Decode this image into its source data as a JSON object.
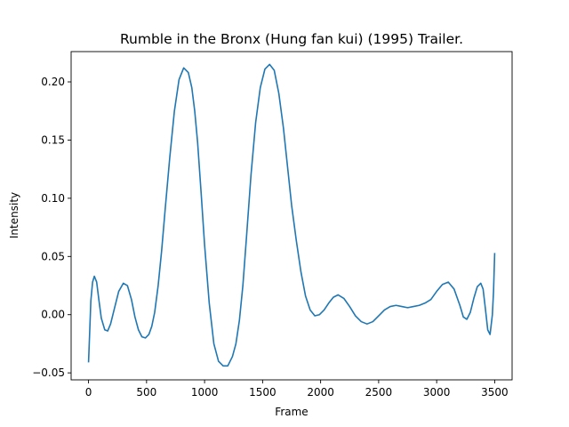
{
  "chart_data": {
    "type": "line",
    "title": "Rumble in the Bronx (Hung fan kui) (1995) Trailer.",
    "xlabel": "Frame",
    "ylabel": "Intensity",
    "xlim": [
      -150,
      3650
    ],
    "ylim": [
      -0.056,
      0.226
    ],
    "xticks": [
      0,
      500,
      1000,
      1500,
      2000,
      2500,
      3000,
      3500
    ],
    "yticks": [
      -0.05,
      0.0,
      0.05,
      0.1,
      0.15,
      0.2
    ],
    "xtick_labels": [
      "0",
      "500",
      "1000",
      "1500",
      "2000",
      "2500",
      "3000",
      "3500"
    ],
    "ytick_labels": [
      "−0.05",
      "0.00",
      "0.05",
      "0.10",
      "0.15",
      "0.20"
    ],
    "grid": false,
    "series": [
      {
        "color": "#1f77b4",
        "x": [
          0,
          10,
          20,
          35,
          50,
          70,
          90,
          110,
          140,
          165,
          190,
          220,
          260,
          300,
          335,
          370,
          400,
          430,
          460,
          490,
          520,
          545,
          570,
          600,
          630,
          660,
          700,
          740,
          780,
          820,
          860,
          890,
          915,
          940,
          970,
          1000,
          1040,
          1080,
          1120,
          1160,
          1200,
          1240,
          1270,
          1300,
          1330,
          1360,
          1400,
          1440,
          1480,
          1520,
          1560,
          1600,
          1640,
          1680,
          1715,
          1750,
          1790,
          1830,
          1870,
          1910,
          1950,
          1990,
          2030,
          2070,
          2110,
          2150,
          2200,
          2250,
          2300,
          2350,
          2400,
          2450,
          2500,
          2550,
          2600,
          2650,
          2700,
          2750,
          2800,
          2850,
          2900,
          2950,
          3000,
          3050,
          3100,
          3150,
          3200,
          3230,
          3260,
          3290,
          3320,
          3350,
          3380,
          3400,
          3420,
          3440,
          3460,
          3480,
          3490,
          3500
        ],
        "y": [
          -0.041,
          -0.015,
          0.012,
          0.028,
          0.033,
          0.028,
          0.012,
          -0.003,
          -0.013,
          -0.014,
          -0.008,
          0.004,
          0.02,
          0.027,
          0.025,
          0.013,
          -0.002,
          -0.013,
          -0.019,
          -0.02,
          -0.017,
          -0.01,
          0.002,
          0.025,
          0.055,
          0.09,
          0.135,
          0.175,
          0.202,
          0.212,
          0.208,
          0.195,
          0.175,
          0.148,
          0.105,
          0.06,
          0.01,
          -0.025,
          -0.04,
          -0.044,
          -0.044,
          -0.036,
          -0.025,
          -0.005,
          0.025,
          0.065,
          0.12,
          0.165,
          0.195,
          0.211,
          0.215,
          0.21,
          0.19,
          0.16,
          0.127,
          0.094,
          0.064,
          0.037,
          0.016,
          0.004,
          -0.001,
          0.0,
          0.004,
          0.01,
          0.015,
          0.017,
          0.014,
          0.007,
          -0.001,
          -0.006,
          -0.008,
          -0.006,
          -0.001,
          0.004,
          0.007,
          0.008,
          0.007,
          0.006,
          0.007,
          0.008,
          0.01,
          0.013,
          0.02,
          0.026,
          0.028,
          0.022,
          0.008,
          -0.002,
          -0.004,
          0.002,
          0.014,
          0.024,
          0.027,
          0.022,
          0.005,
          -0.013,
          -0.017,
          0.0,
          0.02,
          0.053
        ]
      }
    ]
  }
}
